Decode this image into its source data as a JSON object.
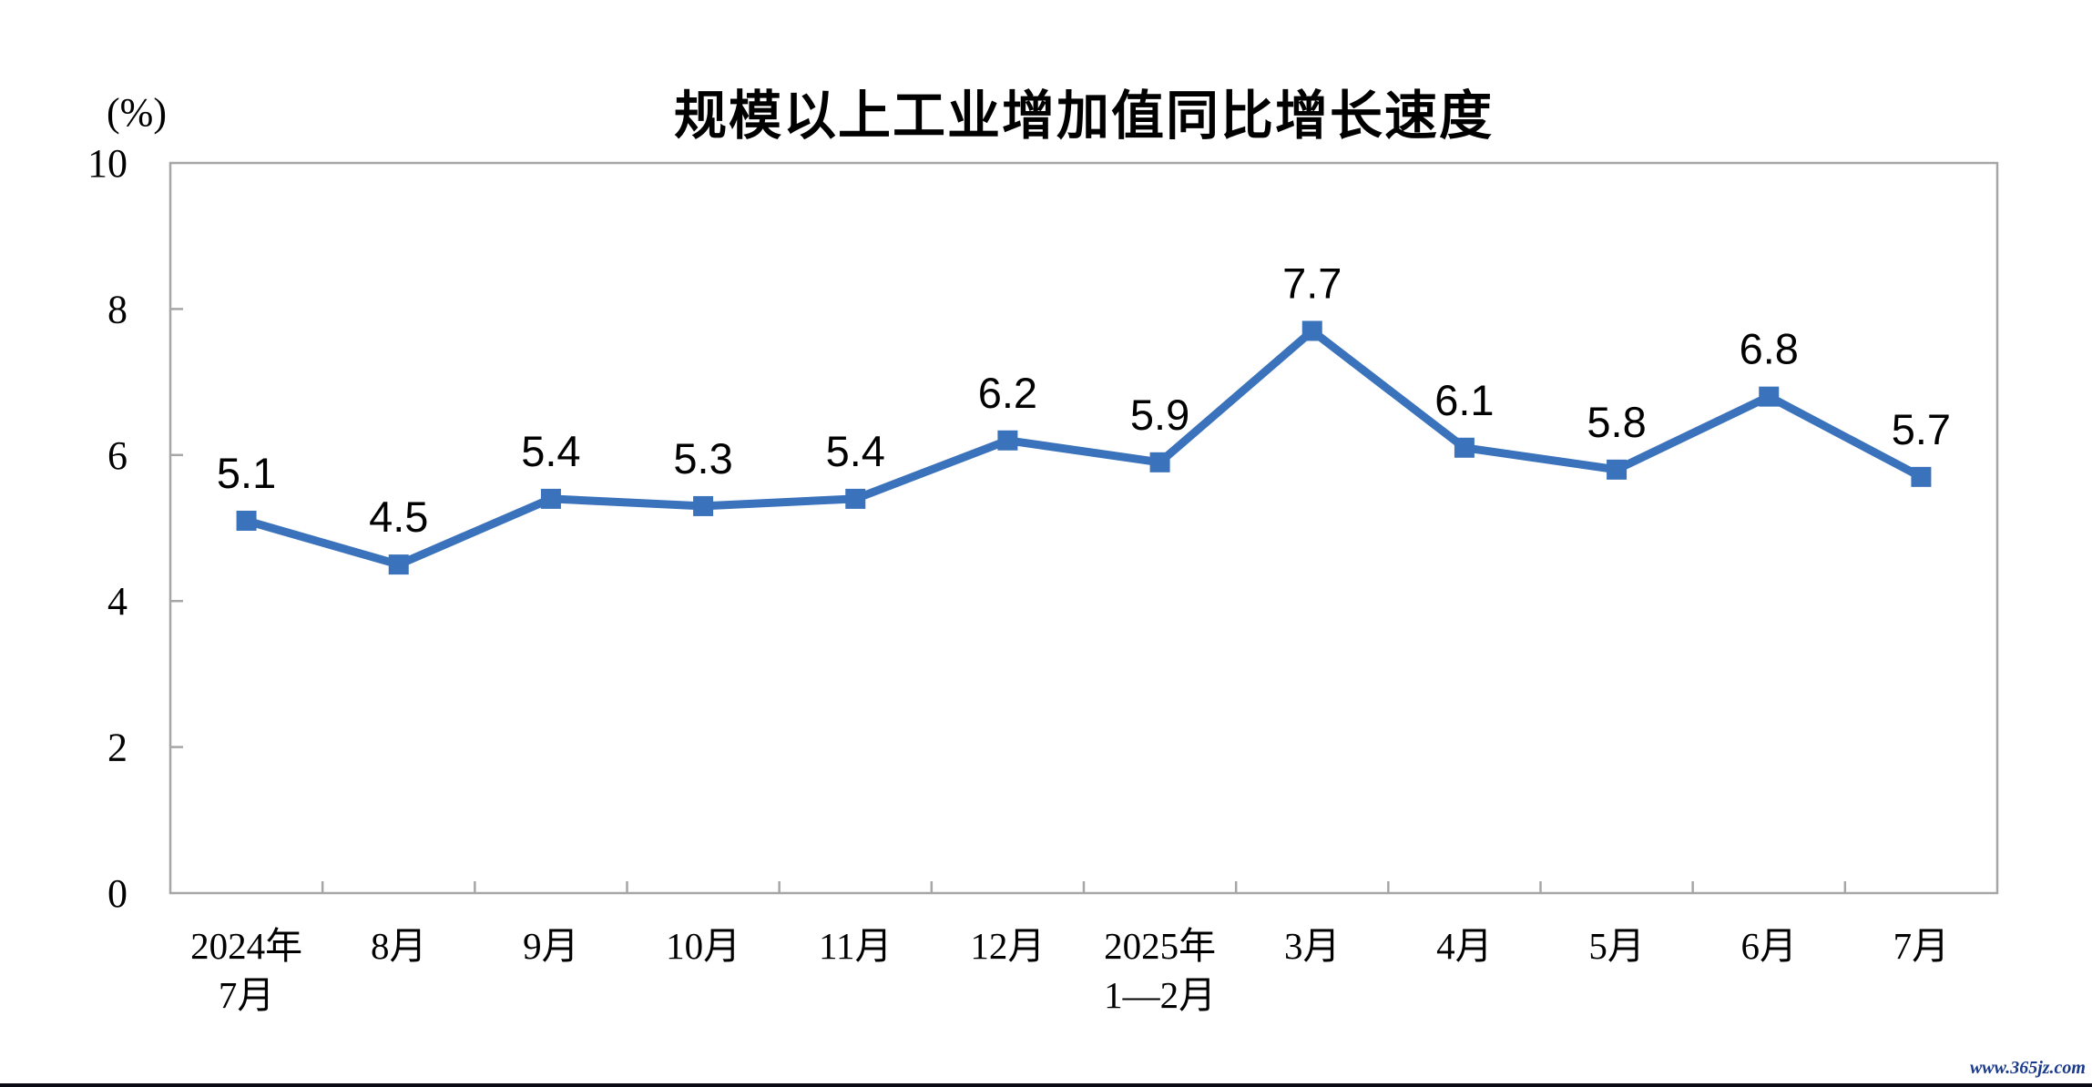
{
  "page": {
    "watermark": "www.365jz.com"
  },
  "chart_data": {
    "type": "line",
    "title": "规模以上工业增加值同比增长速度",
    "unit_label": "(%)",
    "categories": [
      [
        "2024年",
        "7月"
      ],
      [
        "8月"
      ],
      [
        "9月"
      ],
      [
        "10月"
      ],
      [
        "11月"
      ],
      [
        "12月"
      ],
      [
        "2025年",
        "1—2月"
      ],
      [
        "3月"
      ],
      [
        "4月"
      ],
      [
        "5月"
      ],
      [
        "6月"
      ],
      [
        "7月"
      ]
    ],
    "values": [
      5.1,
      4.5,
      5.4,
      5.3,
      5.4,
      6.2,
      5.9,
      7.7,
      6.1,
      5.8,
      6.8,
      5.7
    ],
    "data_labels": [
      "5.1",
      "4.5",
      "5.4",
      "5.3",
      "5.4",
      "6.2",
      "5.9",
      "7.7",
      "6.1",
      "5.8",
      "6.8",
      "5.7"
    ],
    "ylim": [
      0,
      10
    ],
    "yticks": [
      0,
      2,
      4,
      6,
      8,
      10
    ],
    "grid": false,
    "legend_position": "none",
    "series_color": "#3b72bc",
    "axis_color": "#a6a6a6",
    "label_color": "#000000"
  }
}
